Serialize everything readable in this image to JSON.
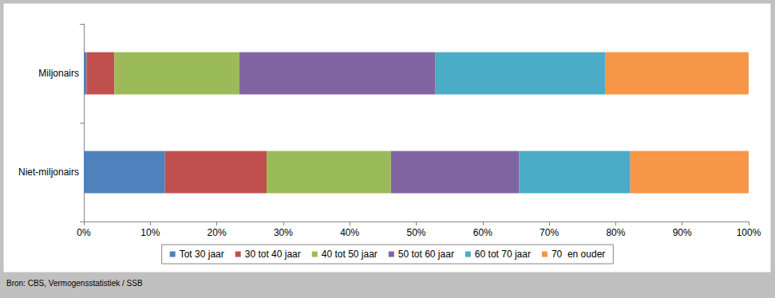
{
  "chart_data": {
    "type": "bar",
    "orientation": "horizontal",
    "stacked": true,
    "grid": false,
    "legend": "bottom",
    "source": "Bron: CBS, Vermogensstatistiek / SSB",
    "categories": [
      "Miljonairs",
      "Niet-miljonairs"
    ],
    "series": [
      {
        "name": "Tot 30 jaar",
        "color": "#4f81bd",
        "values": [
          0.4,
          12.2
        ]
      },
      {
        "name": "30 tot 40 jaar",
        "color": "#c0504d",
        "values": [
          4.2,
          15.3
        ]
      },
      {
        "name": "40 tot 50 jaar",
        "color": "#9bbb59",
        "values": [
          18.8,
          18.7
        ]
      },
      {
        "name": "50 tot 60 jaar",
        "color": "#8064a2",
        "values": [
          29.5,
          19.3
        ]
      },
      {
        "name": "60 tot 70 jaar",
        "color": "#4bacc6",
        "values": [
          25.5,
          16.7
        ]
      },
      {
        "name": "70  en ouder",
        "color": "#f79646",
        "values": [
          21.6,
          17.8
        ]
      }
    ],
    "xlim": [
      0,
      100
    ],
    "xticks": [
      {
        "value": 0,
        "label": "0%"
      },
      {
        "value": 10,
        "label": "10%"
      },
      {
        "value": 20,
        "label": "20%"
      },
      {
        "value": 30,
        "label": "30%"
      },
      {
        "value": 40,
        "label": "40%"
      },
      {
        "value": 50,
        "label": "50%"
      },
      {
        "value": 60,
        "label": "60%"
      },
      {
        "value": 70,
        "label": "70%"
      },
      {
        "value": 80,
        "label": "80%"
      },
      {
        "value": 90,
        "label": "90%"
      },
      {
        "value": 100,
        "label": "100%"
      }
    ]
  }
}
